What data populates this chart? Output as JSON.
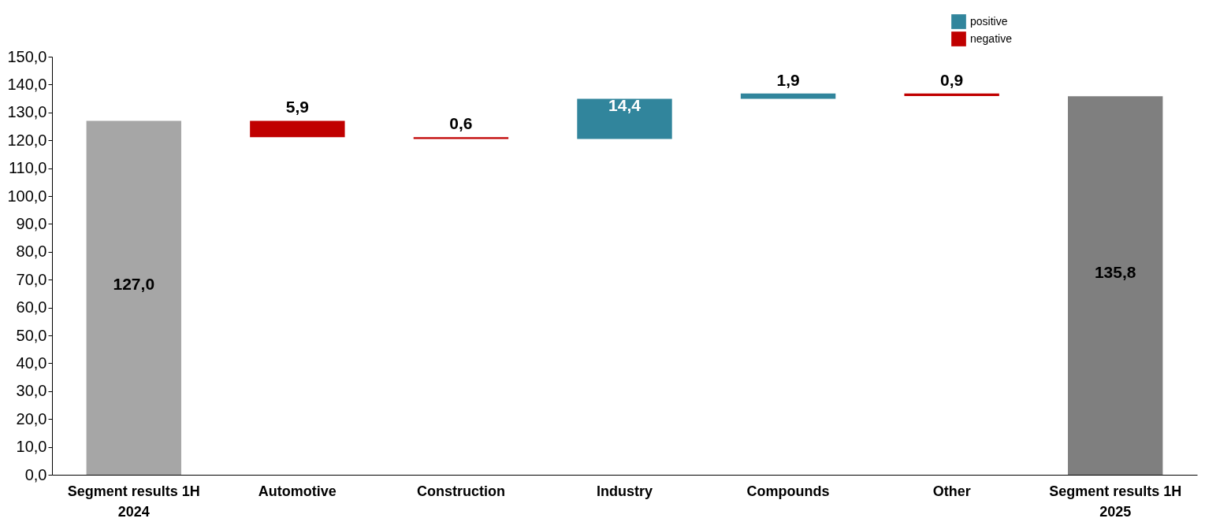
{
  "chart_data": {
    "type": "bar",
    "categories": [
      "Segment results 1H 2024",
      "Automotive",
      "Construction",
      "Industry",
      "Compounds",
      "Other",
      "Segment results 1H 2025"
    ],
    "series": [
      {
        "name": "positive",
        "color": "#31859c",
        "base": [
          null,
          null,
          null,
          120.5,
          134.9,
          null,
          null
        ],
        "values": [
          null,
          null,
          null,
          14.4,
          1.9,
          null,
          null
        ],
        "value_labels": [
          null,
          null,
          null,
          "14,4",
          "1,9",
          null,
          null
        ]
      },
      {
        "name": "negative",
        "color": "#c00000",
        "base": [
          null,
          121.1,
          120.5,
          null,
          null,
          135.9,
          null
        ],
        "values": [
          null,
          5.9,
          0.6,
          null,
          null,
          0.9,
          null
        ],
        "value_labels": [
          null,
          "5,9",
          "0,6",
          null,
          null,
          "0,9",
          null
        ]
      },
      {
        "color": "#a6a6a6",
        "values": [
          127.0,
          null,
          null,
          null,
          null,
          null,
          null
        ],
        "value_labels": [
          "127,0",
          null,
          null,
          null,
          null,
          null,
          null
        ]
      },
      {
        "color": "#7f7f7f",
        "values": [
          null,
          null,
          null,
          null,
          null,
          null,
          135.8
        ],
        "value_labels": [
          null,
          null,
          null,
          null,
          null,
          null,
          "135,8"
        ]
      }
    ],
    "ylim": [
      0,
      150
    ],
    "yticks": [
      {
        "value": 0,
        "label": "0,0"
      },
      {
        "value": 10,
        "label": "10,0"
      },
      {
        "value": 20,
        "label": "20,0"
      },
      {
        "value": 30,
        "label": "30,0"
      },
      {
        "value": 40,
        "label": "40,0"
      },
      {
        "value": 50,
        "label": "50,0"
      },
      {
        "value": 60,
        "label": "60,0"
      },
      {
        "value": 70,
        "label": "70,0"
      },
      {
        "value": 80,
        "label": "80,0"
      },
      {
        "value": 90,
        "label": "90,0"
      },
      {
        "value": 100,
        "label": "100,0"
      },
      {
        "value": 110,
        "label": "110,0"
      },
      {
        "value": 120,
        "label": "120,0"
      },
      {
        "value": 130,
        "label": "130,0"
      },
      {
        "value": 140,
        "label": "140,0"
      },
      {
        "value": 150,
        "label": "150,0"
      }
    ],
    "grid": false,
    "legend": "top right"
  }
}
